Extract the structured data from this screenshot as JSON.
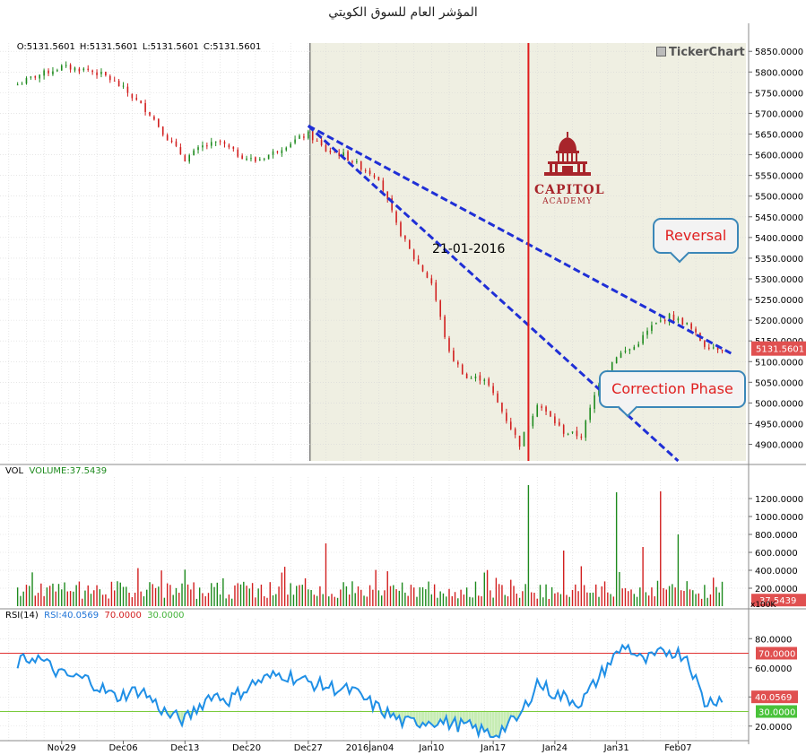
{
  "chart": {
    "title": "المؤشر العام للسوق الكويتي",
    "ohlc": {
      "open": "O:5131.5601",
      "high": "H:5131.5601",
      "low": "L:5131.5601",
      "close": "C:5131.5601"
    },
    "watermark": "TickerChart",
    "event_date_label": "21-01-2016",
    "logo_text_1": "CAPITOL",
    "logo_text_2": "ACADEMY",
    "callouts": {
      "reversal": "Reversal",
      "correction": "Correction Phase"
    },
    "last_price_tag": "5131.5601",
    "vol_header": {
      "label": "VOL",
      "series": "VOLUME:37.5439"
    },
    "vol_last_tag": "37.5439",
    "vol_unit_tag": "x100K",
    "rsi_header": {
      "label": "RSI(14)",
      "value": "RSI:40.0569",
      "upper": "70.0000",
      "lower": "30.0000"
    },
    "rsi_last_tag": "40.0569",
    "rsi_upper_tag": "70.0000",
    "rsi_lower_tag": "30.0000",
    "colors": {
      "up": "#1d8a1d",
      "down": "#d21f1f",
      "shade": "#efefe2",
      "trend": "#1f2fd6",
      "event_line": "#e01a1a",
      "rsi": "#1f8fe6",
      "rsi_upper": "#e03030",
      "rsi_lower": "#7acb3c",
      "rsi_fill": "#c7ecb4",
      "tag_red": "#e05050",
      "tag_green": "#49c23a"
    }
  },
  "chart_data": [
    {
      "type": "candlestick",
      "name": "price",
      "ylim": [
        4860,
        5870
      ],
      "y_ticks": [
        4900,
        4950,
        5000,
        5050,
        5100,
        5150,
        5200,
        5250,
        5300,
        5350,
        5400,
        5450,
        5500,
        5550,
        5600,
        5650,
        5700,
        5750,
        5800,
        5850
      ],
      "y_tick_labels": [
        "4900.0000",
        "4950.0000",
        "5000.0000",
        "5050.0000",
        "5100.0000",
        "5150.0000",
        "5200.0000",
        "5250.0000",
        "5300.0000",
        "5350.0000",
        "5400.0000",
        "5450.0000",
        "5500.0000",
        "5550.0000",
        "5600.0000",
        "5650.0000",
        "5700.0000",
        "5750.0000",
        "5800.0000",
        "5850.0000"
      ],
      "x_tick_labels": [
        "Nov29",
        "Dec06",
        "Dec13",
        "Dec20",
        "Dec27",
        "2016Jan04",
        "Jan10",
        "Jan17",
        "Jan24",
        "Jan31",
        "Feb07"
      ],
      "shaded_region": [
        "Dec27",
        "2016-02-13"
      ],
      "event_date": "21-01-2016",
      "last_close": 5131.5601,
      "close_anchors": [
        [
          "2015-11-24",
          5770
        ],
        [
          "2015-11-26",
          5790
        ],
        [
          "2015-11-29",
          5812
        ],
        [
          "2015-12-02",
          5805
        ],
        [
          "2015-12-04",
          5790
        ],
        [
          "2015-12-06",
          5760
        ],
        [
          "2015-12-09",
          5700
        ],
        [
          "2015-12-11",
          5640
        ],
        [
          "2015-12-13",
          5590
        ],
        [
          "2015-12-15",
          5620
        ],
        [
          "2015-12-17",
          5630
        ],
        [
          "2015-12-19",
          5600
        ],
        [
          "2015-12-21",
          5585
        ],
        [
          "2015-12-23",
          5605
        ],
        [
          "2015-12-25",
          5630
        ],
        [
          "2015-12-27",
          5650
        ],
        [
          "2015-12-29",
          5610
        ],
        [
          "2015-12-31",
          5600
        ],
        [
          "2016-01-02",
          5570
        ],
        [
          "2016-01-04",
          5545
        ],
        [
          "2016-01-06",
          5430
        ],
        [
          "2016-01-08",
          5350
        ],
        [
          "2016-01-10",
          5290
        ],
        [
          "2016-01-12",
          5120
        ],
        [
          "2016-01-14",
          5060
        ],
        [
          "2016-01-16",
          5060
        ],
        [
          "2016-01-18",
          4980
        ],
        [
          "2016-01-20",
          4900
        ],
        [
          "2016-01-22",
          5000
        ],
        [
          "2016-01-25",
          4930
        ],
        [
          "2016-01-27",
          4920
        ],
        [
          "2016-01-29",
          5050
        ],
        [
          "2016-01-31",
          5115
        ],
        [
          "2016-02-02",
          5135
        ],
        [
          "2016-02-04",
          5185
        ],
        [
          "2016-02-06",
          5210
        ],
        [
          "2016-02-08",
          5190
        ],
        [
          "2016-02-10",
          5140
        ],
        [
          "2016-02-12",
          5131.56
        ]
      ],
      "trendlines": [
        {
          "from": [
            "2015-12-27",
            5670
          ],
          "to": [
            "2016-02-13",
            5120
          ]
        },
        {
          "from": [
            "2015-12-27",
            5670
          ],
          "to": [
            "2016-02-07",
            4860
          ]
        }
      ]
    },
    {
      "type": "bar",
      "name": "VOL",
      "unit": "x100K",
      "ylim": [
        0,
        1400
      ],
      "y_ticks": [
        200,
        400,
        600,
        800,
        1000,
        1200
      ],
      "y_tick_labels": [
        "200.0000",
        "400.0000",
        "600.0000",
        "800.0000",
        "1000.0000",
        "1200.0000"
      ],
      "last_value": 37.5439,
      "spikes": [
        [
          "2015-12-29",
          700
        ],
        [
          "2016-01-21",
          1350
        ],
        [
          "2016-01-31",
          1270
        ],
        [
          "2016-02-05",
          1280
        ],
        [
          "2016-02-07",
          800
        ],
        [
          "2016-01-25",
          620
        ],
        [
          "2016-02-03",
          660
        ]
      ]
    },
    {
      "type": "line",
      "name": "RSI(14)",
      "ylim": [
        10,
        90
      ],
      "y_ticks": [
        20,
        40,
        60,
        80
      ],
      "y_tick_labels": [
        "20.0000",
        "40.0000",
        "60.0000",
        "80.0000"
      ],
      "upper": 70,
      "lower": 30,
      "last_value": 40.0569,
      "anchors": [
        [
          "2015-11-24",
          63
        ],
        [
          "2015-11-26",
          68
        ],
        [
          "2015-11-29",
          55
        ],
        [
          "2015-12-02",
          52
        ],
        [
          "2015-12-05",
          40
        ],
        [
          "2015-12-08",
          45
        ],
        [
          "2015-12-11",
          28
        ],
        [
          "2015-12-13",
          24
        ],
        [
          "2015-12-16",
          42
        ],
        [
          "2015-12-18",
          38
        ],
        [
          "2015-12-21",
          50
        ],
        [
          "2015-12-24",
          56
        ],
        [
          "2015-12-27",
          50
        ],
        [
          "2015-12-30",
          46
        ],
        [
          "2016-01-01",
          44
        ],
        [
          "2016-01-04",
          32
        ],
        [
          "2016-01-07",
          22
        ],
        [
          "2016-01-10",
          24
        ],
        [
          "2016-01-14",
          20
        ],
        [
          "2016-01-17",
          14
        ],
        [
          "2016-01-20",
          26
        ],
        [
          "2016-01-22",
          50
        ],
        [
          "2016-01-24",
          42
        ],
        [
          "2016-01-27",
          36
        ],
        [
          "2016-01-30",
          62
        ],
        [
          "2016-02-01",
          76
        ],
        [
          "2016-02-03",
          64
        ],
        [
          "2016-02-06",
          72
        ],
        [
          "2016-02-08",
          68
        ],
        [
          "2016-02-10",
          36
        ],
        [
          "2016-02-12",
          40.0569
        ]
      ]
    }
  ]
}
